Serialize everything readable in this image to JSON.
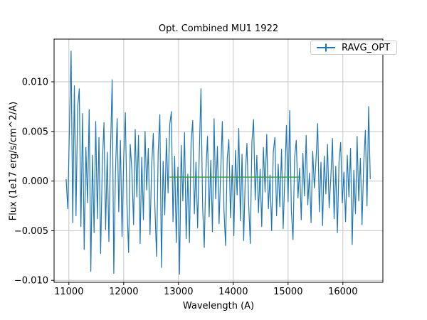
{
  "figure": {
    "background": "#ffffff",
    "title": "Opt. Combined MU1 1922",
    "xlabel": "Wavelength (A)",
    "ylabel": "Flux (1e17 erg/s/cm^2/A)"
  },
  "legend": {
    "position": "upper right",
    "entries": [
      {
        "label": "RAVG_OPT",
        "color": "#1f77b4",
        "marker": "errorbar"
      }
    ]
  },
  "colors": {
    "primary_series": "#1f77b4",
    "overlay_series": "#2ca02c",
    "grid": "#c6c6c6",
    "spine": "#000000",
    "text": "#000000",
    "legend_border": "#cccccc"
  },
  "chart_data": {
    "type": "line",
    "title": "Opt. Combined MU1 1922",
    "xlabel": "Wavelength (A)",
    "ylabel": "Flux (1e17 erg/s/cm^2/A)",
    "xlim": [
      10730,
      16730
    ],
    "ylim": [
      -0.0102,
      0.0143
    ],
    "grid": true,
    "legend_position": "upper right",
    "x_ticks": {
      "values": [
        11000,
        12000,
        13000,
        14000,
        15000,
        16000
      ],
      "labels": [
        "11000",
        "12000",
        "13000",
        "14000",
        "15000",
        "16000"
      ]
    },
    "y_ticks": {
      "values": [
        -0.01,
        -0.005,
        0.0,
        0.005,
        0.01
      ],
      "labels": [
        "−0.010",
        "−0.005",
        "0.000",
        "0.005",
        "0.010"
      ]
    },
    "series": [
      {
        "name": "RAVG_OPT",
        "color": "#1f77b4",
        "style": "errorbar-line",
        "x_start": 10950,
        "x_step": 30,
        "y_scale": 0.001,
        "values_milli": [
          0.2,
          -2.8,
          5.5,
          13.1,
          -4.2,
          9.6,
          -3.5,
          7.4,
          9.3,
          -4.6,
          6.8,
          -6.9,
          3.4,
          -2.2,
          7.2,
          -9.1,
          2.6,
          -5.2,
          6.0,
          -3.8,
          4.4,
          -7.3,
          1.8,
          5.9,
          -4.9,
          2.9,
          -6.1,
          3.2,
          10.2,
          -9.3,
          0.8,
          6.3,
          -3.1,
          4.1,
          -5.6,
          2.2,
          6.9,
          -2.4,
          -7.2,
          3.7,
          1.1,
          -4.4,
          5.2,
          -1.6,
          4.6,
          -6.3,
          2.4,
          -3.9,
          5.0,
          -0.9,
          3.3,
          -5.4,
          1.5,
          4.8,
          -2.7,
          -7.6,
          3.0,
          6.7,
          -8.7,
          2.0,
          -3.4,
          4.3,
          -1.2,
          5.7,
          7.0,
          -4.1,
          2.5,
          -6.2,
          1.4,
          -9.4,
          3.6,
          -2.0,
          4.9,
          -5.8,
          0.7,
          -6.2,
          3.9,
          6.1,
          -3.3,
          1.9,
          -4.7,
          2.8,
          9.3,
          -2.5,
          -6.7,
          1.0,
          4.5,
          -3.6,
          2.1,
          -5.1,
          6.3,
          -1.8,
          3.5,
          -4.3,
          0.9,
          6.0,
          -2.9,
          -6.5,
          2.3,
          4.2,
          -3.7,
          1.6,
          -5.5,
          3.1,
          -1.4,
          5.3,
          -4.0,
          2.7,
          -6.0,
          0.5,
          3.8,
          -2.3,
          -6.3,
          4.0,
          6.2,
          -1.9,
          2.6,
          -3.2,
          1.2,
          -4.6,
          3.4,
          -1.1,
          4.7,
          -2.8,
          0.6,
          -5.0,
          2.9,
          4.4,
          -3.5,
          1.7,
          -2.6,
          3.2,
          -4.8,
          0.3,
          5.6,
          -2.1,
          7.1,
          -3.0,
          -5.9,
          2.4,
          4.1,
          -1.7,
          1.3,
          -3.9,
          2.8,
          -1.5,
          4.6,
          -2.4,
          0.8,
          -4.2,
          3.0,
          -0.7,
          2.2,
          5.8,
          -3.1,
          1.9,
          -4.5,
          2.5,
          -1.3,
          3.7,
          -2.7,
          0.4,
          4.3,
          -3.8,
          1.5,
          -5.2,
          2.0,
          3.9,
          -2.2,
          0.9,
          -4.1,
          2.6,
          -1.6,
          3.3,
          -6.4,
          1.1,
          -3.3,
          4.5,
          -2.0,
          2.3,
          -4.4,
          1.8,
          5.1,
          -2.5,
          7.5,
          0.2
        ]
      },
      {
        "name": "overlay-flat-line",
        "color": "#2ca02c",
        "style": "segment",
        "x": [
          12835,
          15230
        ],
        "y": [
          0.0004,
          0.0004
        ]
      }
    ]
  }
}
